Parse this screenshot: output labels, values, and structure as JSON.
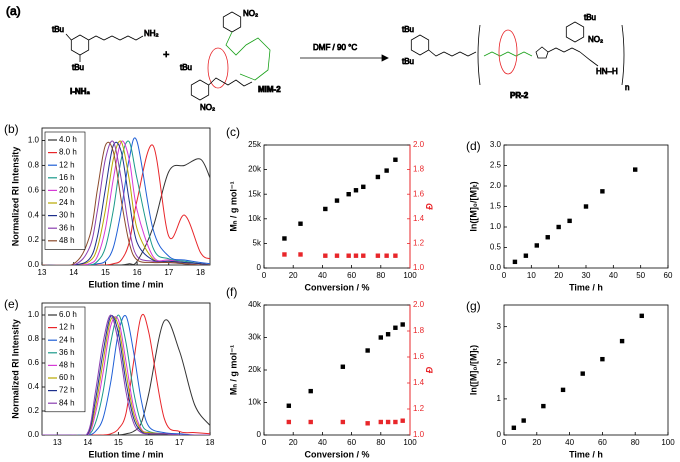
{
  "scheme": {
    "panel": "(a)",
    "tbu": "tBu",
    "amine": "NH₂",
    "reactant1": "I-NH₂",
    "plus": "+",
    "reactant2": "MIM-2",
    "conditions": "DMF / 90 °C",
    "product": "PR-2",
    "nitro": "NO₂",
    "repeat": "n",
    "end": "HN–H"
  },
  "chart_data": [
    {
      "type": "line",
      "label": "(b)",
      "xlabel": "Elution time / min",
      "ylabel": "Normalized RI Intensity",
      "xlim": [
        13,
        18.3
      ],
      "xticks": [
        13,
        14,
        15,
        16,
        17,
        18
      ],
      "ylim": [
        0,
        1.1
      ],
      "yticks": [
        {
          "value": 0,
          "label": "0.0"
        },
        0.2,
        0.4,
        0.6,
        0.8,
        {
          "value": 1,
          "label": "1.0"
        }
      ],
      "legend": "upper left",
      "x": [
        13,
        14,
        14.5,
        14.75,
        15,
        15.25,
        15.5,
        15.75,
        16,
        16.5,
        17,
        17.5,
        18,
        18.3
      ],
      "series": [
        {
          "name": "4.0 h",
          "color": "#333333",
          "values": [
            0,
            0,
            0,
            0,
            0,
            0,
            0,
            0.01,
            0.03,
            0.3,
            0.75,
            0.8,
            0.85,
            0.7
          ]
        },
        {
          "name": "8.0 h",
          "color": "#e8262a",
          "values": [
            0,
            0,
            0,
            0,
            0,
            0.01,
            0.04,
            0.18,
            0.52,
            0.96,
            0.23,
            0.4,
            0.1,
            0.05
          ]
        },
        {
          "name": "12 h",
          "color": "#1f5fd6",
          "values": [
            0,
            0,
            0,
            0.01,
            0.03,
            0.14,
            0.44,
            0.85,
            0.99,
            0.29,
            0.07,
            0.04,
            0.02,
            0.01
          ]
        },
        {
          "name": "16 h",
          "color": "#1a9a8a",
          "values": [
            0,
            0,
            0,
            0.03,
            0.14,
            0.44,
            0.85,
            0.99,
            0.69,
            0.14,
            0.05,
            0.03,
            0.01,
            0
          ]
        },
        {
          "name": "20 h",
          "color": "#d63ad6",
          "values": [
            0,
            0,
            0.01,
            0.07,
            0.29,
            0.69,
            0.99,
            0.85,
            0.44,
            0.07,
            0.04,
            0.02,
            0.01,
            0
          ]
        },
        {
          "name": "24 h",
          "color": "#b8a800",
          "values": [
            0,
            0,
            0.03,
            0.14,
            0.44,
            0.85,
            0.99,
            0.69,
            0.29,
            0.05,
            0.03,
            0.02,
            0.01,
            0
          ]
        },
        {
          "name": "30 h",
          "color": "#1c2f8c",
          "values": [
            0,
            0,
            0.05,
            0.23,
            0.61,
            0.96,
            0.91,
            0.52,
            0.18,
            0.04,
            0.03,
            0.02,
            0.01,
            0
          ]
        },
        {
          "name": "36 h",
          "color": "#8a3fb0",
          "values": [
            0,
            0,
            0.14,
            0.44,
            0.85,
            0.99,
            0.69,
            0.29,
            0.07,
            0.03,
            0.02,
            0.01,
            0,
            0
          ]
        },
        {
          "name": "48 h",
          "color": "#8b4a2b",
          "values": [
            0,
            0.01,
            0.23,
            0.61,
            0.96,
            0.91,
            0.52,
            0.18,
            0.04,
            0.02,
            0.02,
            0.01,
            0,
            0
          ]
        }
      ]
    },
    {
      "type": "scatter",
      "label": "(c)",
      "xlabel": "Conversion / %",
      "ylabel": "Mₙ / g mol⁻¹",
      "y2label": "Đ",
      "xlim": [
        0,
        100
      ],
      "xticks": [
        0,
        20,
        40,
        60,
        80,
        100
      ],
      "ylim": [
        0,
        25000
      ],
      "yticks": [
        0,
        {
          "value": 5000,
          "label": "5k"
        },
        {
          "value": 10000,
          "label": "10k"
        },
        {
          "value": 15000,
          "label": "15k"
        },
        {
          "value": 20000,
          "label": "20k"
        },
        {
          "value": 25000,
          "label": "25k"
        }
      ],
      "y2lim": [
        1,
        2
      ],
      "y2ticks": [
        {
          "value": 1,
          "label": "1.0"
        },
        1.2,
        1.4,
        1.6,
        1.8,
        {
          "value": 2,
          "label": "2.0"
        }
      ],
      "x": [
        14,
        25,
        42,
        50,
        58,
        63,
        68,
        78,
        84,
        90
      ],
      "series": [
        {
          "color": "#000000",
          "values": [
            6000,
            9000,
            12000,
            13700,
            15000,
            15800,
            16500,
            18500,
            19800,
            22000
          ]
        },
        {
          "color": "#e8262a",
          "axis": "y2",
          "values": [
            1.11,
            1.11,
            1.1,
            1.1,
            1.1,
            1.1,
            1.1,
            1.1,
            1.1,
            1.1
          ]
        }
      ]
    },
    {
      "type": "scatter",
      "label": "(d)",
      "xlabel": "Time / h",
      "ylabel": "ln([M]₀/[M]ₜ)",
      "xlim": [
        0,
        60
      ],
      "xticks": [
        0,
        10,
        20,
        30,
        40,
        50,
        60
      ],
      "ylim": [
        0,
        3
      ],
      "yticks": [
        {
          "value": 0,
          "label": "0.0"
        },
        0.5,
        {
          "value": 1,
          "label": "1.0"
        },
        1.5,
        {
          "value": 2,
          "label": "2.0"
        },
        2.5,
        {
          "value": 3,
          "label": "3.0"
        }
      ],
      "x": [
        4,
        8,
        12,
        16,
        20,
        24,
        30,
        36,
        48
      ],
      "series": [
        {
          "color": "#000000",
          "values": [
            0.15,
            0.3,
            0.55,
            0.75,
            1,
            1.15,
            1.5,
            1.87,
            2.4
          ]
        }
      ]
    },
    {
      "type": "line",
      "label": "(e)",
      "xlabel": "Elution time / min",
      "ylabel": "Normalized RI Intensity",
      "xlim": [
        12.5,
        18
      ],
      "xticks": [
        13,
        14,
        15,
        16,
        17,
        18
      ],
      "ylim": [
        0,
        1.1
      ],
      "yticks": [
        {
          "value": 0,
          "label": "0.0"
        },
        0.2,
        0.4,
        0.6,
        0.8,
        {
          "value": 1,
          "label": "1.0"
        }
      ],
      "legend": "upper left",
      "x": [
        12.5,
        13.5,
        14,
        14.25,
        14.5,
        14.75,
        15,
        15.25,
        15.5,
        15.75,
        16,
        16.5,
        17,
        17.5,
        18
      ],
      "series": [
        {
          "name": "6.0 h",
          "color": "#333333",
          "values": [
            0,
            0,
            0,
            0,
            0,
            0,
            0,
            0.01,
            0.03,
            0.1,
            0.35,
            0.95,
            0.7,
            0.25,
            0.08
          ]
        },
        {
          "name": "12 h",
          "color": "#e8262a",
          "values": [
            0,
            0,
            0,
            0,
            0,
            0.01,
            0.05,
            0.18,
            0.61,
            0.99,
            0.85,
            0.14,
            0.03,
            0.02,
            0.01
          ]
        },
        {
          "name": "24 h",
          "color": "#1f5fd6",
          "values": [
            0,
            0,
            0,
            0.03,
            0.14,
            0.44,
            0.85,
            0.99,
            0.69,
            0.29,
            0.07,
            0.02,
            0.01,
            0,
            0
          ]
        },
        {
          "name": "36 h",
          "color": "#1a9a8a",
          "values": [
            0,
            0,
            0,
            0.1,
            0.36,
            0.77,
            1,
            0.77,
            0.36,
            0.1,
            0.03,
            0.01,
            0,
            0,
            0
          ]
        },
        {
          "name": "48 h",
          "color": "#d63ad6",
          "values": [
            0,
            0,
            0,
            0.18,
            0.52,
            0.91,
            0.96,
            0.61,
            0.23,
            0.05,
            0.02,
            0.01,
            0,
            0,
            0
          ]
        },
        {
          "name": "60 h",
          "color": "#b8a800",
          "values": [
            0,
            0,
            0.01,
            0.23,
            0.61,
            0.96,
            0.91,
            0.52,
            0.18,
            0.04,
            0.02,
            0.01,
            0,
            0,
            0
          ]
        },
        {
          "name": "72 h",
          "color": "#1c2f8c",
          "values": [
            0,
            0,
            0.01,
            0.29,
            0.69,
            0.99,
            0.85,
            0.44,
            0.14,
            0.03,
            0.01,
            0.01,
            0,
            0,
            0
          ]
        },
        {
          "name": "84 h",
          "color": "#8a3fb0",
          "values": [
            0,
            0,
            0.02,
            0.36,
            0.77,
            1,
            0.77,
            0.36,
            0.1,
            0.02,
            0.01,
            0.01,
            0,
            0,
            0
          ]
        }
      ]
    },
    {
      "type": "scatter",
      "label": "(f)",
      "xlabel": "Conversion / %",
      "ylabel": "Mₙ / g mol⁻¹",
      "y2label": "Đ",
      "xlim": [
        0,
        100
      ],
      "xticks": [
        0,
        20,
        40,
        60,
        80,
        100
      ],
      "ylim": [
        0,
        40000
      ],
      "yticks": [
        0,
        {
          "value": 10000,
          "label": "10k"
        },
        {
          "value": 20000,
          "label": "20k"
        },
        {
          "value": 30000,
          "label": "30k"
        },
        {
          "value": 40000,
          "label": "40k"
        }
      ],
      "y2lim": [
        1,
        2
      ],
      "y2ticks": [
        {
          "value": 1,
          "label": "1.0"
        },
        1.2,
        1.4,
        1.6,
        1.8,
        {
          "value": 2,
          "label": "2.0"
        }
      ],
      "x": [
        17,
        32,
        54,
        71,
        80,
        85,
        90,
        95
      ],
      "series": [
        {
          "color": "#000000",
          "values": [
            9000,
            13500,
            21000,
            26000,
            30000,
            31000,
            33000,
            34000
          ]
        },
        {
          "color": "#e8262a",
          "axis": "y2",
          "values": [
            1.1,
            1.1,
            1.1,
            1.09,
            1.1,
            1.1,
            1.1,
            1.11
          ]
        }
      ]
    },
    {
      "type": "scatter",
      "label": "(g)",
      "xlabel": "Time / h",
      "ylabel": "ln([M]₀/[M]ₜ)",
      "xlim": [
        0,
        100
      ],
      "xticks": [
        0,
        20,
        40,
        60,
        80,
        100
      ],
      "ylim": [
        0,
        3.6
      ],
      "yticks": [
        0,
        1,
        2,
        3
      ],
      "x": [
        6,
        12,
        24,
        36,
        48,
        60,
        72,
        84
      ],
      "series": [
        {
          "color": "#000000",
          "values": [
            0.2,
            0.4,
            0.8,
            1.25,
            1.7,
            2.1,
            2.6,
            3.3
          ]
        }
      ]
    }
  ]
}
